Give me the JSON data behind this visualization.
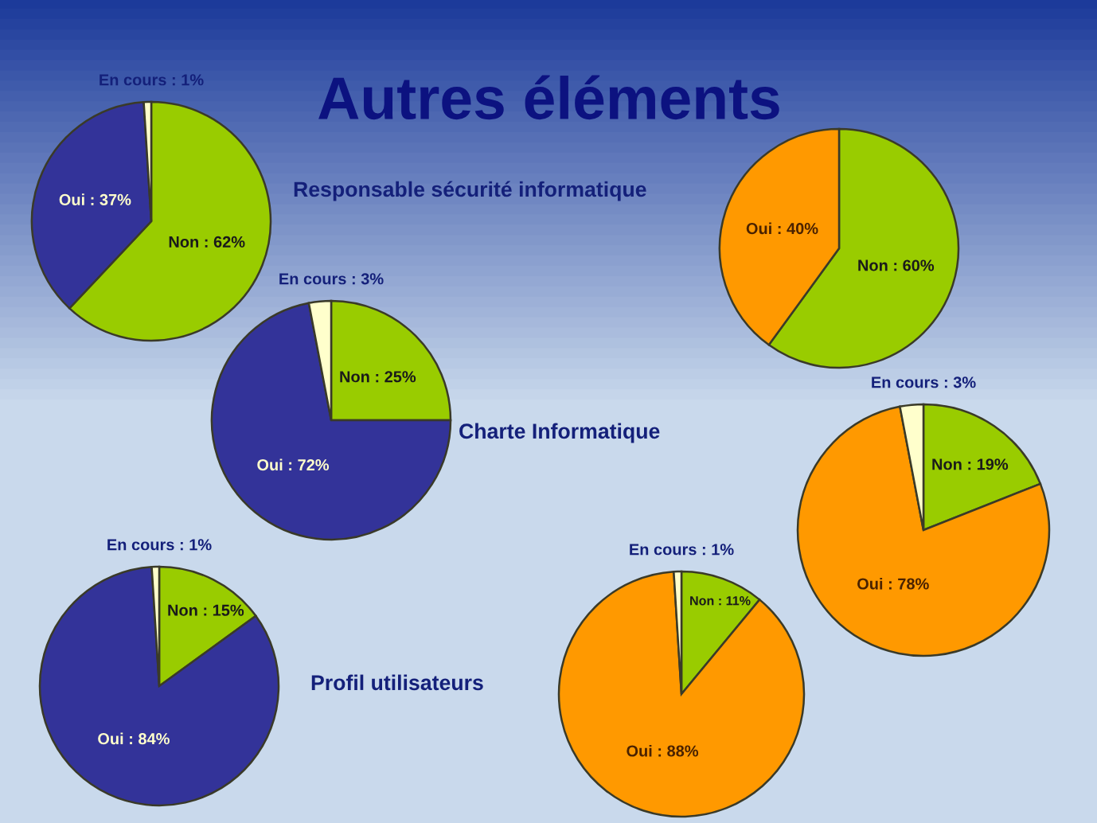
{
  "chart_data": [
    {
      "type": "pie",
      "title": "Autres éléments",
      "subtitle": "Responsable sécurité informatique",
      "categories": [
        "Non",
        "Oui",
        "En cours"
      ],
      "values": [
        62,
        37,
        1
      ],
      "colors": [
        "#99cc00",
        "#333399",
        "#ffffcc"
      ],
      "value_labels": [
        "62%",
        "37%",
        "1%"
      ]
    },
    {
      "type": "pie",
      "categories": [
        "Non",
        "Oui"
      ],
      "values": [
        60,
        40
      ],
      "colors": [
        "#99cc00",
        "#ff9900"
      ],
      "value_labels": [
        "60%",
        "40%"
      ]
    },
    {
      "type": "pie",
      "subtitle": "Charte Informatique",
      "categories": [
        "Non",
        "Oui",
        "En cours"
      ],
      "values": [
        25,
        72,
        3
      ],
      "colors": [
        "#99cc00",
        "#333399",
        "#ffffcc"
      ],
      "value_labels": [
        "25%",
        "72%",
        "3%"
      ]
    },
    {
      "type": "pie",
      "categories": [
        "Non",
        "Oui",
        "En cours"
      ],
      "values": [
        19,
        78,
        3
      ],
      "colors": [
        "#99cc00",
        "#ff9900",
        "#ffffcc"
      ],
      "value_labels": [
        "19%",
        "78%",
        "3%"
      ]
    },
    {
      "type": "pie",
      "subtitle": "Profil utilisateurs",
      "categories": [
        "Non",
        "Oui",
        "En cours"
      ],
      "values": [
        15,
        84,
        1
      ],
      "colors": [
        "#99cc00",
        "#333399",
        "#ffffcc"
      ],
      "value_labels": [
        "15%",
        "84%",
        "1%"
      ]
    },
    {
      "type": "pie",
      "categories": [
        "Non",
        "Oui",
        "En cours"
      ],
      "values": [
        11,
        88,
        1
      ],
      "colors": [
        "#99cc00",
        "#ff9900",
        "#ffffcc"
      ],
      "value_labels": [
        "11%",
        "88%",
        "1%"
      ]
    }
  ]
}
